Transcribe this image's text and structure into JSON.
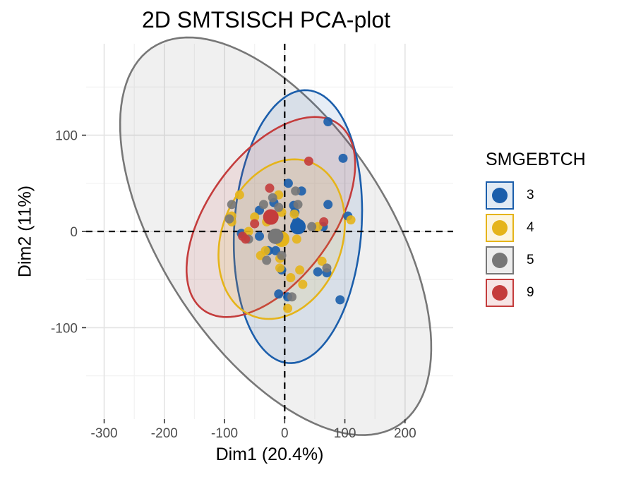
{
  "chart_data": {
    "type": "scatter",
    "title": "2D SMTSISCH PCA-plot",
    "xlabel": "Dim1 (20.4%)",
    "ylabel": "Dim2 (11%)",
    "xlim": [
      -330,
      280
    ],
    "ylim": [
      -195,
      195
    ],
    "xticks": [
      -300,
      -200,
      -100,
      0,
      100,
      200
    ],
    "yticks": [
      -100,
      0,
      100
    ],
    "xtick_labels": [
      "-300",
      "-200",
      "-100",
      "0",
      "100",
      "200"
    ],
    "ytick_labels": [
      "-100",
      "0",
      "100"
    ],
    "grid": true,
    "reference_lines": {
      "x": 0,
      "y": 0,
      "style": "dashed"
    },
    "legend": {
      "title": "SMGEBTCH",
      "position": "right"
    },
    "series": [
      {
        "name": "3",
        "color": "#1b5eab",
        "points": [
          [
            72,
            114
          ],
          [
            97,
            76
          ],
          [
            6,
            50
          ],
          [
            -18,
            30
          ],
          [
            28,
            42
          ],
          [
            15,
            27
          ],
          [
            -42,
            22
          ],
          [
            72,
            28
          ],
          [
            105,
            16
          ],
          [
            17,
            20
          ],
          [
            -72,
            -2
          ],
          [
            70,
            -43
          ],
          [
            92,
            -71
          ],
          [
            55,
            -42
          ],
          [
            -5,
            -40
          ],
          [
            -10,
            -65
          ],
          [
            5,
            -68
          ],
          [
            -15,
            -20
          ],
          [
            -42,
            -5
          ],
          [
            20,
            10
          ],
          [
            -27,
            -20
          ],
          [
            64,
            5
          ]
        ],
        "centroid": [
          22,
          5
        ],
        "ellipse": {
          "cx": 22,
          "cy": 5,
          "rx": 143,
          "ry": 105,
          "angle_deg": 79
        }
      },
      {
        "name": "4",
        "color": "#e5b41a",
        "points": [
          [
            -75,
            38
          ],
          [
            -10,
            38
          ],
          [
            -88,
            16
          ],
          [
            -50,
            15
          ],
          [
            -30,
            10
          ],
          [
            -5,
            20
          ],
          [
            16,
            18
          ],
          [
            -40,
            -25
          ],
          [
            -32,
            -20
          ],
          [
            -8,
            -38
          ],
          [
            10,
            -48
          ],
          [
            25,
            -40
          ],
          [
            30,
            -55
          ],
          [
            62,
            -31
          ],
          [
            5,
            -80
          ],
          [
            55,
            5
          ],
          [
            110,
            12
          ],
          [
            -8,
            -28
          ],
          [
            20,
            -8
          ],
          [
            -60,
            0
          ],
          [
            -88,
            10
          ]
        ],
        "centroid": [
          -5,
          -8
        ],
        "ellipse": {
          "cx": -5,
          "cy": -8,
          "rx": 108,
          "ry": 79,
          "angle_deg": 20
        }
      },
      {
        "name": "5",
        "color": "#777777",
        "points": [
          [
            -88,
            28
          ],
          [
            -92,
            13
          ],
          [
            -35,
            28
          ],
          [
            -10,
            25
          ],
          [
            18,
            42
          ],
          [
            22,
            28
          ],
          [
            -20,
            35
          ],
          [
            12,
            -68
          ],
          [
            -30,
            -30
          ],
          [
            70,
            -38
          ],
          [
            -60,
            -8
          ],
          [
            45,
            5
          ],
          [
            -5,
            -25
          ]
        ],
        "centroid": [
          -15,
          -5
        ],
        "ellipse": {
          "cx": -15,
          "cy": -5,
          "rx": 295,
          "ry": 150,
          "angle_deg": -34
        }
      },
      {
        "name": "9",
        "color": "#c43c3c",
        "points": [
          [
            40,
            73
          ],
          [
            -25,
            45
          ],
          [
            -50,
            8
          ],
          [
            -70,
            -5
          ],
          [
            -65,
            -8
          ],
          [
            65,
            10
          ]
        ],
        "centroid": [
          -23,
          15
        ],
        "ellipse": {
          "cx": -23,
          "cy": 15,
          "rx": 155,
          "ry": 80,
          "angle_deg": 30
        }
      }
    ]
  }
}
